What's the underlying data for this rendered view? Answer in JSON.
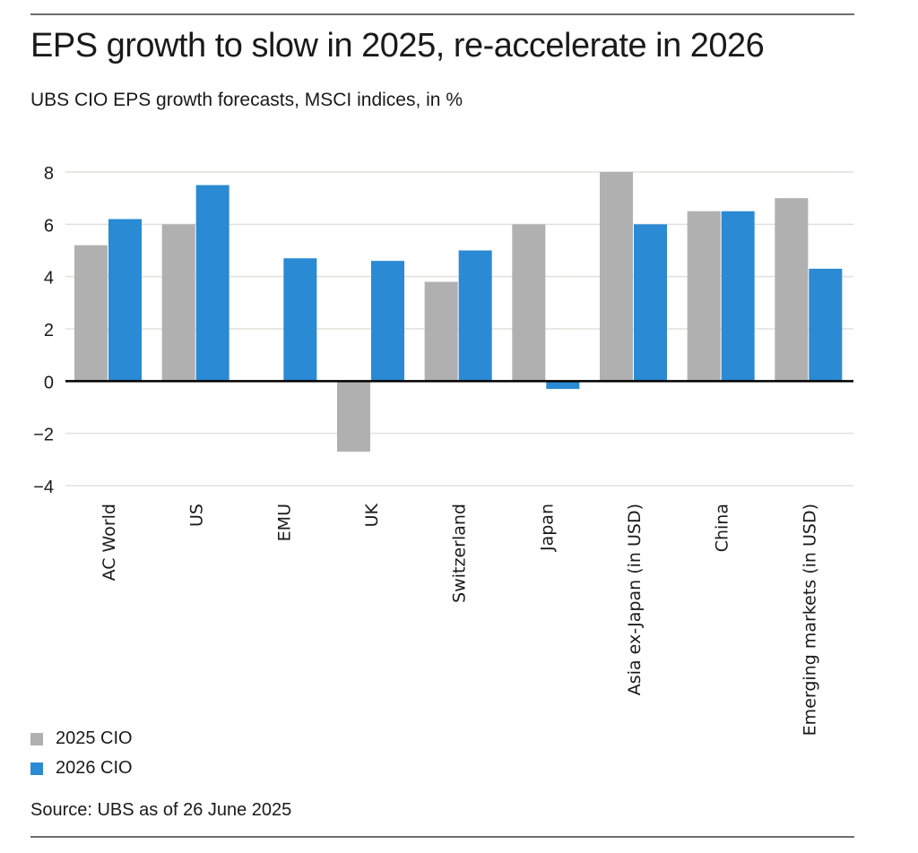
{
  "header": {
    "title": "EPS growth to slow in 2025, re-accelerate in 2026",
    "subtitle": "UBS CIO EPS growth forecasts, MSCI indices, in %"
  },
  "footer": {
    "source": "Source: UBS as of 26 June 2025"
  },
  "colors": {
    "series_2025": "#b0b0b0",
    "series_2026": "#2a8ad4",
    "gridline": "#e2e0dc",
    "zero_line": "#000000",
    "text": "#1a1a1a"
  },
  "chart_data": {
    "type": "bar",
    "title": "EPS growth to slow in 2025, re-accelerate in 2026",
    "subtitle": "UBS CIO EPS growth forecasts, MSCI indices, in %",
    "xlabel": "",
    "ylabel": "",
    "categories": [
      "AC World",
      "US",
      "EMU",
      "UK",
      "Switzerland",
      "Japan",
      "Asia ex-Japan (in USD)",
      "China",
      "Emerging markets (in USD)"
    ],
    "series": [
      {
        "name": "2025 CIO",
        "color": "#b0b0b0",
        "values": [
          5.2,
          6.0,
          null,
          -2.7,
          3.8,
          6.0,
          8.0,
          6.5,
          7.0
        ]
      },
      {
        "name": "2026 CIO",
        "color": "#2a8ad4",
        "values": [
          6.2,
          7.5,
          4.7,
          4.6,
          5.0,
          -0.3,
          6.0,
          6.5,
          4.3
        ]
      }
    ],
    "ylim": [
      -4,
      8
    ],
    "yticks": [
      8,
      6,
      4,
      2,
      0,
      -2,
      -4
    ],
    "ytick_labels": [
      "8",
      "6",
      "4",
      "2",
      "0",
      "−2",
      "−4"
    ],
    "grid": true,
    "legend_position": "bottom-left",
    "x_tick_rotation": "vertical",
    "source": "Source: UBS as of 26 June 2025"
  }
}
